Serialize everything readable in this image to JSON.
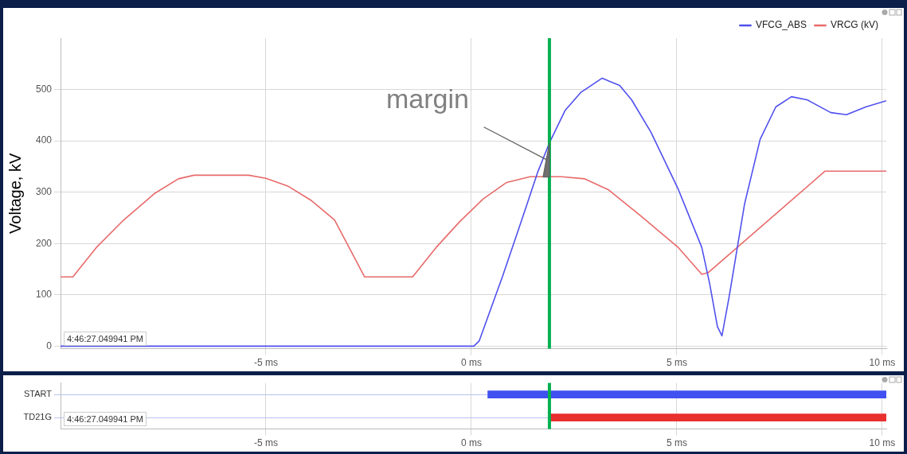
{
  "chart_data": [
    {
      "type": "line",
      "ylabel": "Voltage, kV",
      "legend": "top right",
      "grid": true,
      "xlim": [
        -10,
        10.1
      ],
      "xticks": [
        {
          "value": -5,
          "label": "-5 ms"
        },
        {
          "value": 0,
          "label": "0 ms"
        },
        {
          "value": 5,
          "label": "5 ms"
        },
        {
          "value": 10,
          "label": "10 ms"
        }
      ],
      "ylim": [
        -5,
        600
      ],
      "yticks": [
        0,
        100,
        200,
        300,
        400,
        500
      ],
      "series": [
        {
          "name": "VFCG_ABS",
          "color": "#5050ee",
          "x": [
            -10,
            0.06,
            0.19,
            0.38,
            0.76,
            1.24,
            1.62,
            1.9,
            2.28,
            2.66,
            3.18,
            3.61,
            3.9,
            4.37,
            5.04,
            5.61,
            5.8,
            5.99,
            6.1,
            6.27,
            6.65,
            7.03,
            7.41,
            7.79,
            8.17,
            8.75,
            9.13,
            9.6,
            10.1
          ],
          "values": [
            0,
            0,
            10,
            52,
            136,
            249,
            340,
            396,
            459,
            494,
            522,
            508,
            480,
            417,
            305,
            192,
            122,
            38,
            20,
            94,
            277,
            403,
            466,
            486,
            480,
            455,
            451,
            466,
            478
          ]
        },
        {
          "name": "VRCG (kV)",
          "color": "#e86a6a",
          "x": [
            -10,
            -9.7,
            -9.13,
            -8.46,
            -7.7,
            -7.13,
            -6.75,
            -6.37,
            -5.8,
            -5.42,
            -5.0,
            -4.47,
            -3.9,
            -3.33,
            -2.6,
            -1.43,
            -0.86,
            -0.29,
            0.29,
            0.86,
            1.43,
            2.19,
            2.76,
            3.33,
            4.09,
            5.04,
            5.61,
            5.76,
            8.61,
            10.1
          ],
          "values": [
            135,
            135,
            192,
            246,
            298,
            326,
            333,
            333,
            333,
            333,
            327,
            312,
            284,
            246,
            135,
            135,
            192,
            242,
            287,
            319,
            330,
            330,
            326,
            305,
            256,
            192,
            140,
            143,
            341,
            341
          ]
        }
      ],
      "ref_lines": [
        {
          "axis": "x",
          "value": 1.9,
          "color": "#00b050"
        }
      ],
      "annotations": [
        "margin",
        "4:46:27.049941 PM"
      ]
    },
    {
      "type": "bar",
      "orientation": "horizontal",
      "grid": true,
      "categories": [
        "START",
        "TD21G"
      ],
      "base": [
        0.4,
        1.9
      ],
      "values": [
        9.7,
        8.2
      ],
      "colors": [
        "#3f51f0",
        "#e8302f"
      ],
      "xlim": [
        -10,
        10.1
      ],
      "xticks": [
        {
          "value": -5,
          "label": "-5 ms"
        },
        {
          "value": 0,
          "label": "0 ms"
        },
        {
          "value": 5,
          "label": "5 ms"
        },
        {
          "value": 10,
          "label": "10 ms"
        }
      ],
      "ref_lines": [
        {
          "axis": "x",
          "value": 1.9,
          "color": "#00b050"
        }
      ],
      "annotations": [
        "4:46:27.049941 PM"
      ]
    }
  ]
}
